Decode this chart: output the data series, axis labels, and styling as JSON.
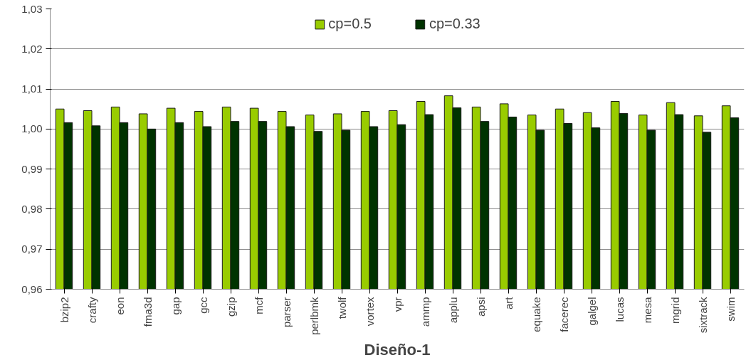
{
  "chart_data": {
    "type": "bar",
    "xlabel": "Diseño-1",
    "categories": [
      "bzip2",
      "crafty",
      "eon",
      "fma3d",
      "gap",
      "gcc",
      "gzip",
      "mcf",
      "parser",
      "perlbmk",
      "twolf",
      "vortex",
      "vpr",
      "ammp",
      "applu",
      "apsi",
      "art",
      "equake",
      "facerec",
      "galgel",
      "lucas",
      "mesa",
      "mgrid",
      "sixtrack",
      "swim"
    ],
    "series": [
      {
        "name": "cp=0.5",
        "color": "#99cc00",
        "values": [
          1.005,
          1.0046,
          1.0055,
          1.0038,
          1.0052,
          1.0044,
          1.0055,
          1.0052,
          1.0044,
          1.0035,
          1.0038,
          1.0044,
          1.0046,
          1.0069,
          1.0083,
          1.0055,
          1.0063,
          1.0035,
          1.005,
          1.0041,
          1.0069,
          1.0035,
          1.0066,
          1.0033,
          1.0058
        ]
      },
      {
        "name": "cp=0.33",
        "color": "#003300",
        "values": [
          1.0016,
          1.0008,
          1.0016,
          1.0,
          1.0016,
          1.0006,
          1.0019,
          1.0019,
          1.0006,
          0.9994,
          0.9997,
          1.0006,
          1.0011,
          1.0036,
          1.0053,
          1.0019,
          1.003,
          0.9997,
          1.0014,
          1.0003,
          1.0039,
          0.9997,
          1.0036,
          0.9992,
          1.0028
        ]
      }
    ],
    "ylim": [
      0.96,
      1.03
    ],
    "yticks": [
      {
        "value": 0.96,
        "label": "0,96"
      },
      {
        "value": 0.97,
        "label": "0,97"
      },
      {
        "value": 0.98,
        "label": "0,98"
      },
      {
        "value": 0.99,
        "label": "0,99"
      },
      {
        "value": 1.0,
        "label": "1,00"
      },
      {
        "value": 1.01,
        "label": "1,01"
      },
      {
        "value": 1.02,
        "label": "1,02"
      },
      {
        "value": 1.03,
        "label": "1,03"
      }
    ],
    "grid": "y",
    "legend": "top"
  }
}
